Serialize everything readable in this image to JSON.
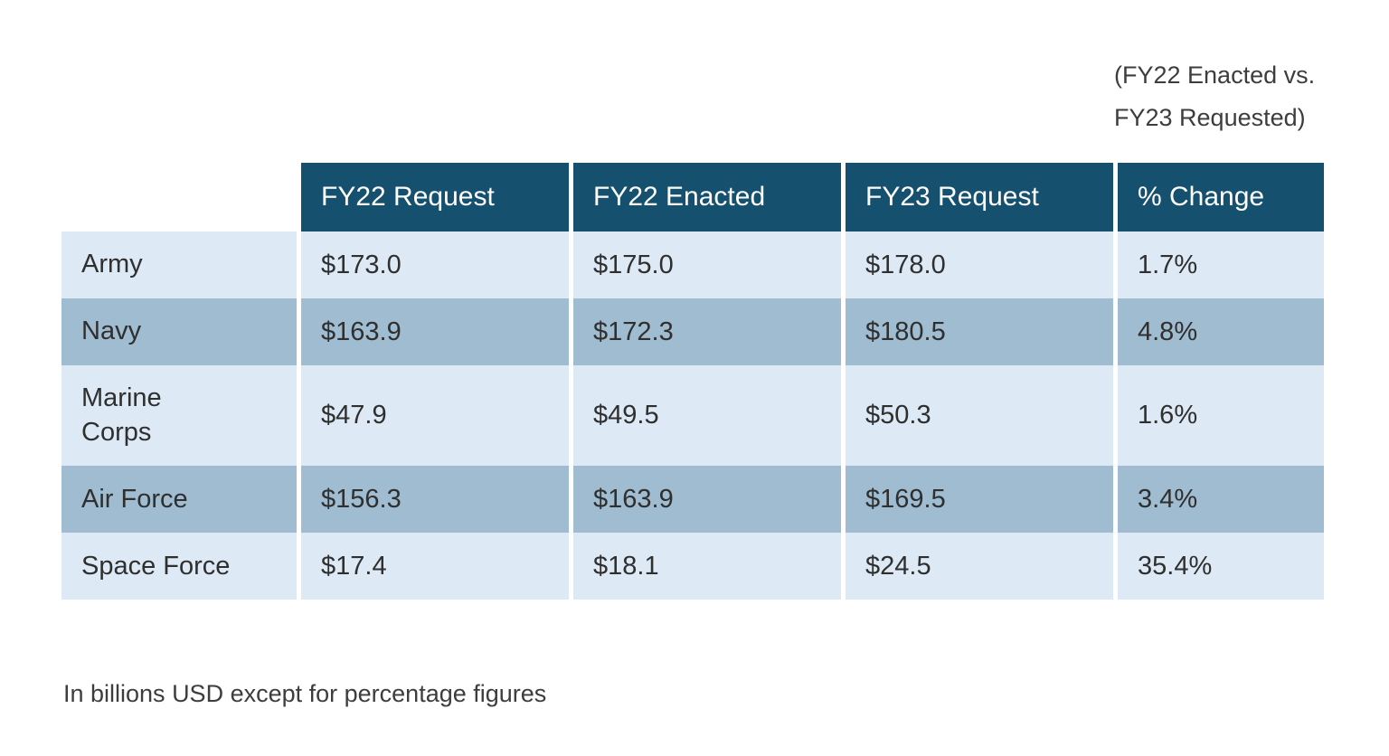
{
  "page": {
    "annotation_line1": "(FY22 Enacted vs.",
    "annotation_line2": "FY23 Requested)",
    "footnote": "In billions USD except for percentage figures"
  },
  "table": {
    "columns": [
      "FY22 Request",
      "FY22 Enacted",
      "FY23 Request",
      "% Change"
    ],
    "rows": [
      {
        "label": "Army",
        "values": [
          "$173.0",
          "$175.0",
          "$178.0",
          "1.7%"
        ]
      },
      {
        "label": "Navy",
        "values": [
          "$163.9",
          "$172.3",
          "$180.5",
          "4.8%"
        ]
      },
      {
        "label": "Marine\nCorps",
        "values": [
          "$47.9",
          "$49.5",
          "$50.3",
          "1.6%"
        ]
      },
      {
        "label": "Air Force",
        "values": [
          "$156.3",
          "$163.9",
          "$169.5",
          "3.4%"
        ]
      },
      {
        "label": "Space Force",
        "values": [
          "$17.4",
          "$18.1",
          "$24.5",
          "35.4%"
        ]
      }
    ]
  },
  "colors": {
    "header_bg": "#15506e",
    "header_text": "#ffffff",
    "row_light": "#ddeaf5",
    "row_dark": "#9fbcd1",
    "text": "#2f2f2f"
  },
  "chart_data": {
    "type": "table",
    "title": "(FY22 Enacted vs. FY23 Requested)",
    "columns": [
      "",
      "FY22 Request",
      "FY22 Enacted",
      "FY23 Request",
      "% Change"
    ],
    "rows": [
      [
        "Army",
        173.0,
        175.0,
        178.0,
        "1.7%"
      ],
      [
        "Navy",
        163.9,
        172.3,
        180.5,
        "4.8%"
      ],
      [
        "Marine Corps",
        47.9,
        49.5,
        50.3,
        "1.6%"
      ],
      [
        "Air Force",
        156.3,
        163.9,
        169.5,
        "3.4%"
      ],
      [
        "Space Force",
        17.4,
        18.1,
        24.5,
        "35.4%"
      ]
    ],
    "note": "In billions USD except for percentage figures",
    "layout": {
      "header_background": "#15506e",
      "striped_rows": true,
      "units": "billions USD"
    }
  }
}
